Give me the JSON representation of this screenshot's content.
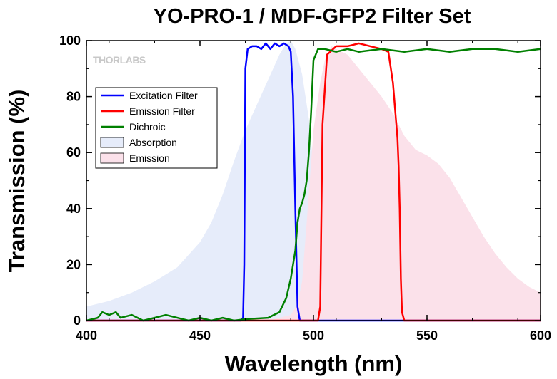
{
  "chart_data": {
    "type": "line",
    "title": "YO-PRO-1 / MDF-GFP2 Filter Set",
    "xlabel": "Wavelength (nm)",
    "ylabel": "Transmission (%)",
    "xlim": [
      400,
      600
    ],
    "ylim": [
      0,
      100
    ],
    "xticks": [
      400,
      450,
      500,
      550,
      600
    ],
    "yticks": [
      0,
      20,
      40,
      60,
      80,
      100
    ],
    "grid": false,
    "legend_position": "upper-left",
    "watermark": "THORLABS",
    "series": [
      {
        "name": "Absorption",
        "kind": "area",
        "color": "#e6ecfa",
        "x": [
          400,
          410,
          420,
          430,
          440,
          450,
          455,
          460,
          465,
          470,
          475,
          480,
          485,
          488,
          490,
          492,
          495,
          498,
          500,
          503,
          505,
          510,
          515,
          520,
          525,
          530,
          535,
          540,
          550,
          560,
          580,
          600
        ],
        "y": [
          5,
          7,
          10,
          14,
          19,
          28,
          35,
          45,
          57,
          68,
          77,
          86,
          95,
          99,
          100,
          97,
          88,
          72,
          55,
          35,
          22,
          8,
          3,
          1,
          0,
          0,
          0,
          0,
          0,
          0,
          0,
          0
        ]
      },
      {
        "name": "Emission",
        "kind": "area",
        "color": "#fbe1ea",
        "x": [
          400,
          480,
          490,
          493,
          495,
          497,
          500,
          503,
          505,
          508,
          510,
          515,
          520,
          525,
          530,
          535,
          540,
          545,
          550,
          555,
          560,
          565,
          570,
          575,
          580,
          585,
          590,
          595,
          600
        ],
        "y": [
          0,
          0,
          2,
          6,
          14,
          35,
          68,
          85,
          93,
          98,
          97,
          95,
          90,
          85,
          80,
          74,
          66,
          61,
          59,
          56,
          51,
          44,
          37,
          30,
          24,
          19,
          15,
          12,
          10
        ]
      },
      {
        "name": "Excitation Filter",
        "kind": "line",
        "color": "#0000ff",
        "x": [
          400,
          468,
          469,
          469.5,
          470,
          471,
          473,
          475,
          477,
          479,
          481,
          483,
          485,
          487,
          489,
          490,
          491,
          492,
          493,
          494,
          600
        ],
        "y": [
          0,
          0,
          1,
          20,
          90,
          97,
          98,
          98,
          97,
          99,
          97,
          99,
          98,
          99,
          98,
          96,
          80,
          40,
          5,
          0,
          0
        ]
      },
      {
        "name": "Emission Filter",
        "kind": "line",
        "color": "#ff0000",
        "x": [
          400,
          502,
          503,
          504,
          506,
          510,
          515,
          520,
          525,
          530,
          533,
          535,
          536,
          537,
          537.5,
          538,
          538.5,
          539,
          540,
          600
        ],
        "y": [
          0,
          0,
          5,
          70,
          95,
          98,
          98,
          99,
          98,
          97,
          96,
          85,
          75,
          65,
          55,
          40,
          15,
          3,
          0,
          0
        ]
      },
      {
        "name": "Dichroic",
        "kind": "line",
        "color": "#008000",
        "x": [
          400,
          405,
          407,
          410,
          413,
          415,
          420,
          425,
          430,
          435,
          440,
          445,
          450,
          455,
          460,
          465,
          470,
          480,
          485,
          488,
          490,
          492,
          493,
          494,
          495,
          496,
          497,
          498,
          499,
          500,
          502,
          505,
          510,
          515,
          520,
          530,
          540,
          550,
          560,
          570,
          580,
          590,
          600
        ],
        "y": [
          0,
          1,
          3,
          2,
          3,
          1,
          2,
          0,
          1,
          2,
          1,
          0,
          1,
          0,
          1,
          0,
          0.5,
          1,
          3,
          8,
          15,
          25,
          35,
          40,
          42,
          45,
          50,
          60,
          75,
          93,
          97,
          97,
          96,
          97,
          96,
          97,
          96,
          97,
          96,
          97,
          97,
          96,
          97
        ]
      }
    ]
  }
}
